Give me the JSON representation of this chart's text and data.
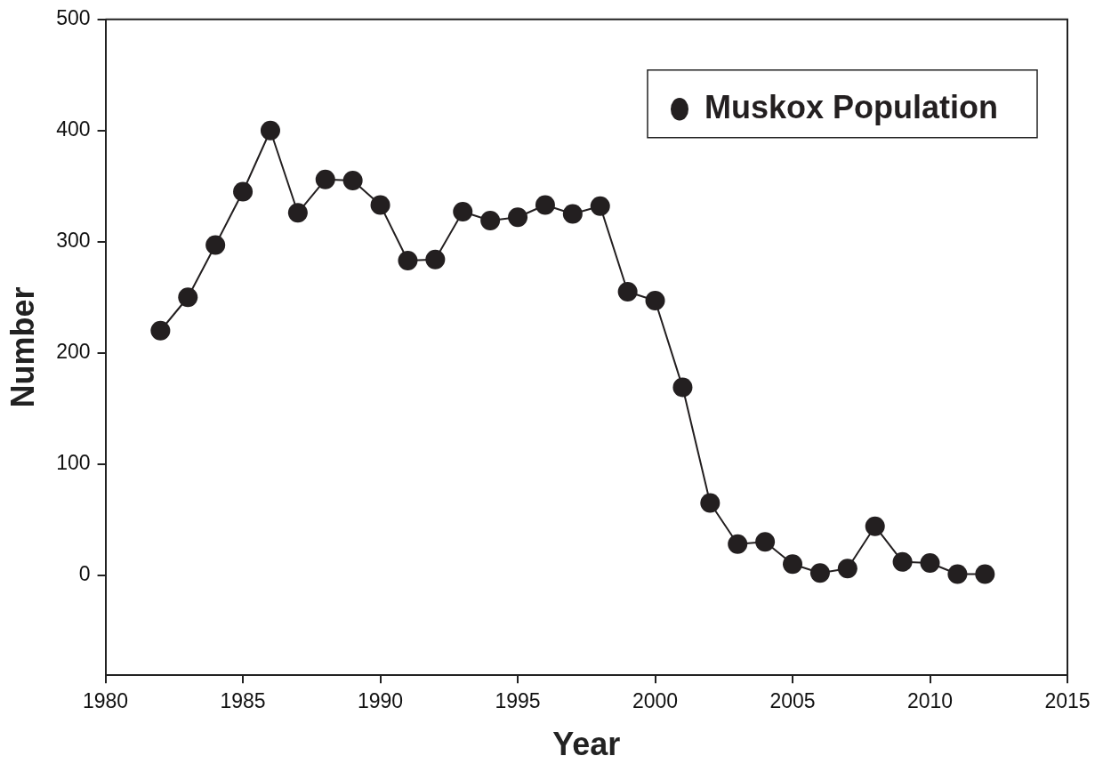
{
  "chart_data": {
    "type": "line",
    "xlabel": "Year",
    "ylabel": "Number",
    "x": [
      1982,
      1983,
      1984,
      1985,
      1986,
      1987,
      1988,
      1989,
      1990,
      1991,
      1992,
      1993,
      1994,
      1995,
      1996,
      1997,
      1998,
      1999,
      2000,
      2001,
      2002,
      2003,
      2004,
      2005,
      2006,
      2007,
      2008,
      2009,
      2010,
      2011,
      2012
    ],
    "series": [
      {
        "name": "Muskox Population",
        "color": "#231f20",
        "values": [
          220,
          250,
          297,
          345,
          400,
          326,
          356,
          355,
          333,
          283,
          284,
          327,
          319,
          322,
          333,
          325,
          332,
          255,
          247,
          169,
          65,
          28,
          30,
          10,
          2,
          6,
          44,
          12,
          11,
          1,
          1
        ]
      }
    ],
    "xlim": [
      1980,
      2015
    ],
    "xticks": [
      1980,
      1985,
      1990,
      1995,
      2000,
      2005,
      2010,
      2015
    ],
    "ylim": [
      -90,
      500
    ],
    "yticks": [
      0,
      100,
      200,
      300,
      400,
      500
    ],
    "grid": false,
    "legend": "top right",
    "marker": "circle",
    "line_style": "solid"
  }
}
